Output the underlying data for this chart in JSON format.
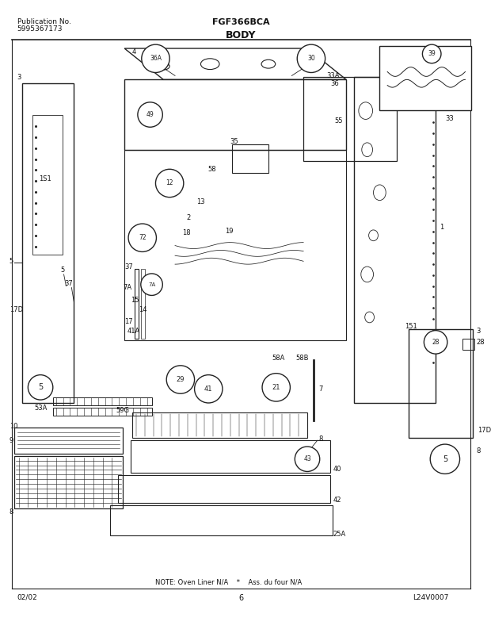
{
  "title_center": "FGF366BCA",
  "title_section": "BODY",
  "pub_no_label": "Publication No.",
  "pub_no": "5995367173",
  "date": "02/02",
  "page": "6",
  "diagram_code": "L24V0007",
  "note": "NOTE: Oven Liner N/A    *    Ass. du four N/A",
  "bg_color": "#ffffff",
  "line_color": "#222222",
  "font_size_labels": 6,
  "font_size_text": 7
}
